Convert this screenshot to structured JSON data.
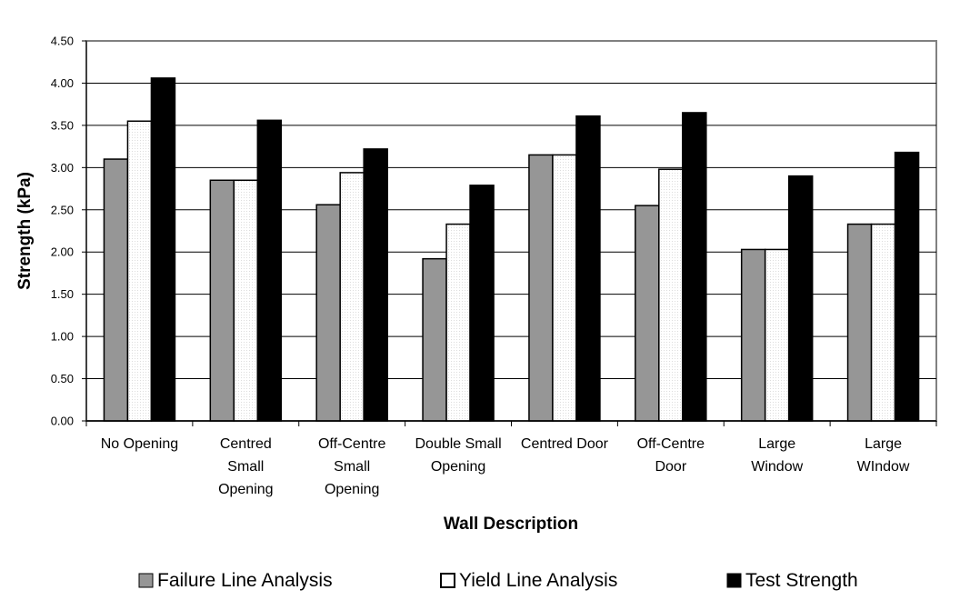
{
  "chart_data": {
    "type": "bar",
    "title": "",
    "xlabel": "Wall Description",
    "ylabel": "Strength (kPa)",
    "ylim": [
      0,
      4.5
    ],
    "ytick_step": 0.5,
    "yticks": [
      "0.00",
      "0.50",
      "1.00",
      "1.50",
      "2.00",
      "2.50",
      "3.00",
      "3.50",
      "4.00",
      "4.50"
    ],
    "grid": "horizontal",
    "legend_position": "bottom",
    "categories": [
      "No Opening",
      "Centred Small Opening",
      "Off-Centre Small Opening",
      "Double Small Opening",
      "Centred Door",
      "Off-Centre Door",
      "Large Window",
      "Large WIndow"
    ],
    "category_lines": [
      [
        "No Opening"
      ],
      [
        "Centred",
        "Small",
        "Opening"
      ],
      [
        "Off-Centre",
        "Small",
        "Opening"
      ],
      [
        "Double Small",
        "Opening"
      ],
      [
        "Centred Door"
      ],
      [
        "Off-Centre",
        "Door"
      ],
      [
        "Large",
        "Window"
      ],
      [
        "Large",
        "WIndow"
      ]
    ],
    "series": [
      {
        "name": "Failure Line Analysis",
        "color": "#969696",
        "values": [
          3.1,
          2.85,
          2.56,
          1.92,
          3.15,
          2.55,
          2.03,
          2.33
        ]
      },
      {
        "name": "Yield Line Analysis",
        "color": "#ffffff",
        "values": [
          3.55,
          2.85,
          2.94,
          2.33,
          3.15,
          2.98,
          2.03,
          2.33
        ]
      },
      {
        "name": "Test Strength",
        "color": "#000000",
        "values": [
          4.06,
          3.56,
          3.22,
          2.79,
          3.61,
          3.65,
          2.9,
          3.18
        ]
      }
    ]
  }
}
